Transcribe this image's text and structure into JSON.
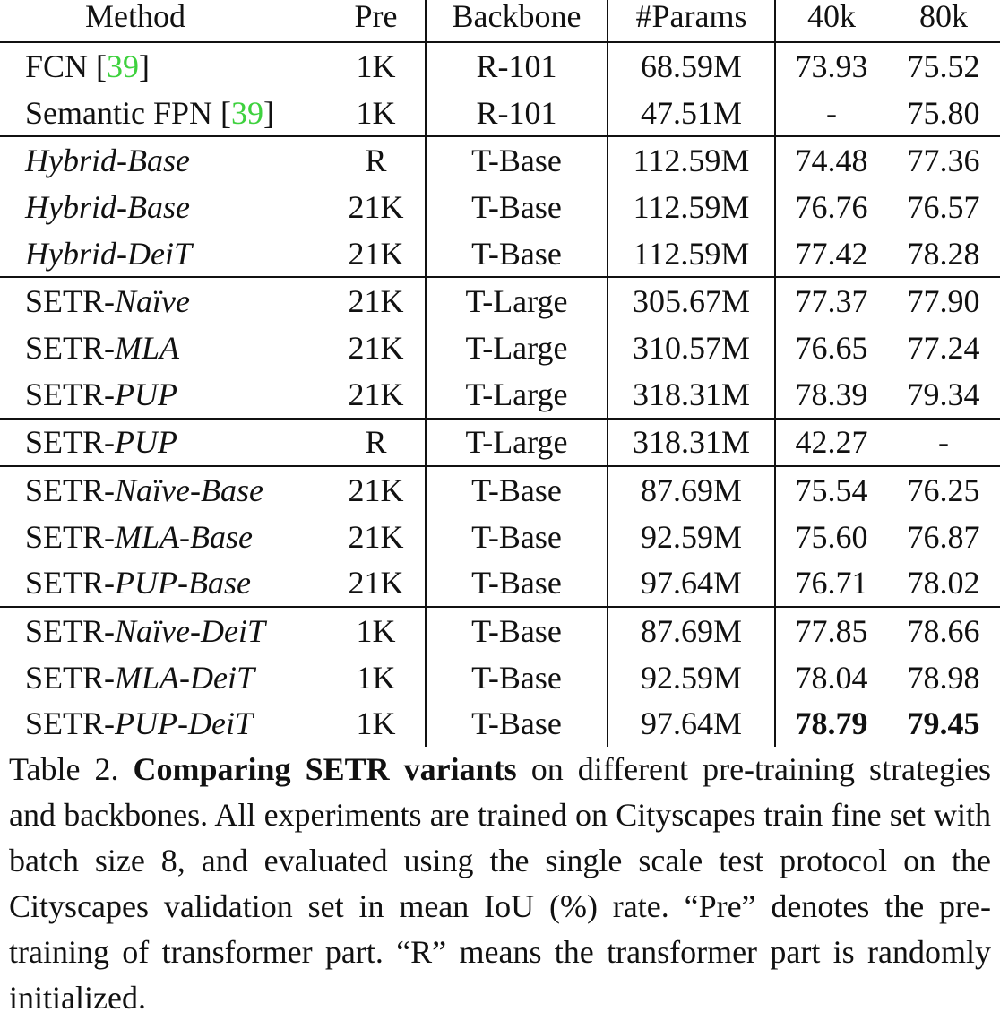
{
  "table": {
    "header": [
      "Method",
      "Pre",
      "Backbone",
      "#Params",
      "40k",
      "80k"
    ],
    "groups": [
      {
        "rows": [
          {
            "method": [
              {
                "text": "FCN [",
                "style": "roman"
              },
              {
                "text": "39",
                "style": "cite"
              },
              {
                "text": "]",
                "style": "roman"
              }
            ],
            "cells": [
              "1K",
              "R-101",
              "68.59M",
              "73.93",
              "75.52"
            ]
          },
          {
            "method": [
              {
                "text": "Semantic FPN [",
                "style": "roman"
              },
              {
                "text": "39",
                "style": "cite"
              },
              {
                "text": "]",
                "style": "roman"
              }
            ],
            "cells": [
              "1K",
              "R-101",
              "47.51M",
              "-",
              "75.80"
            ]
          }
        ]
      },
      {
        "rows": [
          {
            "method": [
              {
                "text": "Hybrid-Base",
                "style": "italic"
              }
            ],
            "cells": [
              "R",
              "T-Base",
              "112.59M",
              "74.48",
              "77.36"
            ]
          },
          {
            "method": [
              {
                "text": "Hybrid-Base",
                "style": "italic"
              }
            ],
            "cells": [
              "21K",
              "T-Base",
              "112.59M",
              "76.76",
              "76.57"
            ]
          },
          {
            "method": [
              {
                "text": "Hybrid-DeiT",
                "style": "italic"
              }
            ],
            "cells": [
              "21K",
              "T-Base",
              "112.59M",
              "77.42",
              "78.28"
            ]
          }
        ]
      },
      {
        "rows": [
          {
            "method": [
              {
                "text": "SETR-",
                "style": "roman"
              },
              {
                "text": "Naïve",
                "style": "italic"
              }
            ],
            "cells": [
              "21K",
              "T-Large",
              "305.67M",
              "77.37",
              "77.90"
            ]
          },
          {
            "method": [
              {
                "text": "SETR-",
                "style": "roman"
              },
              {
                "text": "MLA",
                "style": "italic"
              }
            ],
            "cells": [
              "21K",
              "T-Large",
              "310.57M",
              "76.65",
              "77.24"
            ]
          },
          {
            "method": [
              {
                "text": "SETR-",
                "style": "roman"
              },
              {
                "text": "PUP",
                "style": "italic"
              }
            ],
            "cells": [
              "21K",
              "T-Large",
              "318.31M",
              "78.39",
              "79.34"
            ]
          }
        ]
      },
      {
        "rows": [
          {
            "method": [
              {
                "text": "SETR-",
                "style": "roman"
              },
              {
                "text": "PUP",
                "style": "italic"
              }
            ],
            "cells": [
              "R",
              "T-Large",
              "318.31M",
              "42.27",
              "-"
            ]
          }
        ]
      },
      {
        "rows": [
          {
            "method": [
              {
                "text": "SETR-",
                "style": "roman"
              },
              {
                "text": "Naïve-Base",
                "style": "italic"
              }
            ],
            "cells": [
              "21K",
              "T-Base",
              "87.69M",
              "75.54",
              "76.25"
            ]
          },
          {
            "method": [
              {
                "text": "SETR-",
                "style": "roman"
              },
              {
                "text": "MLA-Base",
                "style": "italic"
              }
            ],
            "cells": [
              "21K",
              "T-Base",
              "92.59M",
              "75.60",
              "76.87"
            ]
          },
          {
            "method": [
              {
                "text": "SETR-",
                "style": "roman"
              },
              {
                "text": "PUP-Base",
                "style": "italic"
              }
            ],
            "cells": [
              "21K",
              "T-Base",
              "97.64M",
              "76.71",
              "78.02"
            ]
          }
        ]
      },
      {
        "rows": [
          {
            "method": [
              {
                "text": "SETR-",
                "style": "roman"
              },
              {
                "text": "Naïve-DeiT",
                "style": "italic"
              }
            ],
            "cells": [
              "1K",
              "T-Base",
              "87.69M",
              "77.85",
              "78.66"
            ]
          },
          {
            "method": [
              {
                "text": "SETR-",
                "style": "roman"
              },
              {
                "text": "MLA-DeiT",
                "style": "italic"
              }
            ],
            "cells": [
              "1K",
              "T-Base",
              "92.59M",
              "78.04",
              "78.98"
            ]
          },
          {
            "method": [
              {
                "text": "SETR-",
                "style": "roman"
              },
              {
                "text": "PUP-DeiT",
                "style": "italic"
              }
            ],
            "cells": [
              "1K",
              "T-Base",
              "97.64M",
              "78.79",
              "79.45"
            ],
            "bold_cells": [
              3,
              4
            ]
          }
        ]
      }
    ]
  },
  "caption": {
    "label": "Table 2.",
    "bold": "Comparing SETR variants",
    "text": "on different pre-training strategies and backbones.  All experiments are trained on Cityscapes train fine set with batch size 8, and evaluated using the single scale test protocol on the Cityscapes validation set in mean IoU (%) rate. “Pre” denotes the pre-training of transformer part. “R” means the transformer part is randomly initialized."
  }
}
